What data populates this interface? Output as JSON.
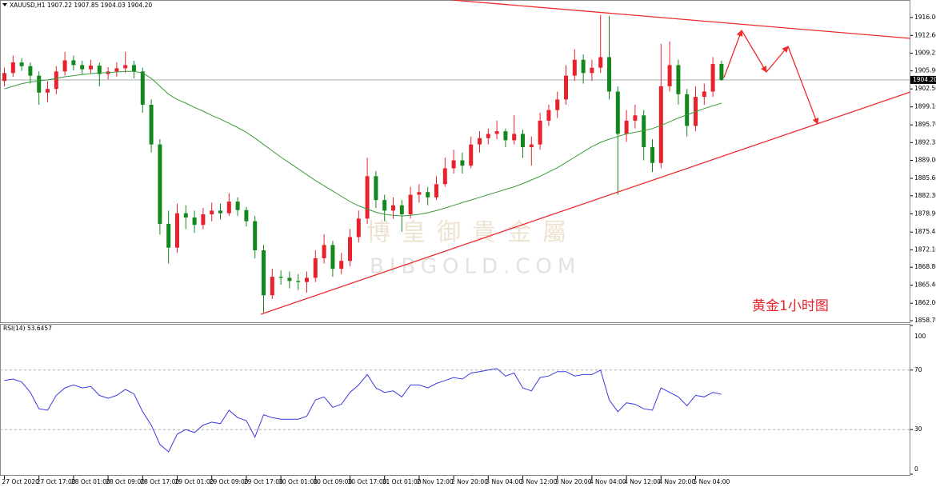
{
  "chart_data": {
    "type": "candlestick",
    "header": "XAUUSD,H1  1907.22 1907.85 1904.03 1904.20",
    "categories": [
      "27 Oct 2020",
      null,
      null,
      null,
      "27 Oct 17:00",
      null,
      null,
      null,
      "28 Oct 01:00",
      null,
      null,
      null,
      "28 Oct 09:00",
      null,
      null,
      null,
      "28 Oct 17:00",
      null,
      null,
      null,
      "29 Oct 01:00",
      null,
      null,
      null,
      "29 Oct 09:00",
      null,
      null,
      null,
      "29 Oct 17:00",
      null,
      null,
      null,
      "30 Oct 01:00",
      null,
      null,
      null,
      "30 Oct 09:00",
      null,
      null,
      null,
      "30 Oct 17:00",
      null,
      null,
      null,
      "31 Oct 01:00",
      null,
      null,
      null,
      "2 Nov 12:00",
      null,
      null,
      null,
      "2 Nov 20:00",
      null,
      null,
      null,
      "3 Nov 04:00",
      null,
      null,
      null,
      "3 Nov 12:00",
      null,
      null,
      null,
      "3 Nov 20:00",
      null,
      null,
      null,
      "4 Nov 04:00",
      null,
      null,
      null,
      "4 Nov 12:00",
      null,
      null,
      null,
      "4 Nov 20:00",
      null,
      null,
      null,
      "5 Nov 04:00",
      null,
      null,
      null
    ],
    "ohlc": [
      [
        1904.0,
        1906.5,
        1903.0,
        1905.5
      ],
      [
        1905.5,
        1908.8,
        1904.8,
        1907.5
      ],
      [
        1907.5,
        1908.3,
        1905.9,
        1906.8
      ],
      [
        1906.8,
        1907.5,
        1903.5,
        1905.0
      ],
      [
        1905.0,
        1905.8,
        1899.5,
        1901.8
      ],
      [
        1901.8,
        1904.0,
        1900.0,
        1902.5
      ],
      [
        1902.5,
        1906.8,
        1901.5,
        1905.8
      ],
      [
        1905.8,
        1909.5,
        1905.0,
        1907.9
      ],
      [
        1907.9,
        1908.8,
        1906.0,
        1907.0
      ],
      [
        1907.0,
        1907.8,
        1905.3,
        1906.2
      ],
      [
        1906.2,
        1908.0,
        1905.5,
        1906.9
      ],
      [
        1906.9,
        1907.5,
        1903.0,
        1905.3
      ],
      [
        1905.3,
        1906.6,
        1904.3,
        1905.8
      ],
      [
        1905.8,
        1907.5,
        1904.8,
        1906.4
      ],
      [
        1906.4,
        1909.5,
        1905.5,
        1907.0
      ],
      [
        1907.0,
        1907.8,
        1904.5,
        1905.8
      ],
      [
        1905.8,
        1906.5,
        1898.0,
        1899.5
      ],
      [
        1899.5,
        1900.5,
        1890.5,
        1892.0
      ],
      [
        1892.0,
        1893.0,
        1875.0,
        1877.0
      ],
      [
        1877.0,
        1879.5,
        1869.5,
        1872.5
      ],
      [
        1872.5,
        1880.8,
        1871.5,
        1879.0
      ],
      [
        1879.0,
        1880.5,
        1876.0,
        1878.2
      ],
      [
        1878.2,
        1879.5,
        1875.3,
        1876.8
      ],
      [
        1876.8,
        1880.0,
        1876.0,
        1878.8
      ],
      [
        1878.8,
        1881.0,
        1877.5,
        1879.5
      ],
      [
        1879.5,
        1880.8,
        1877.8,
        1879.0
      ],
      [
        1879.0,
        1882.8,
        1878.5,
        1881.2
      ],
      [
        1881.2,
        1882.0,
        1878.5,
        1879.6
      ],
      [
        1879.6,
        1880.2,
        1876.5,
        1877.5
      ],
      [
        1877.5,
        1878.5,
        1870.5,
        1872.0
      ],
      [
        1872.0,
        1873.0,
        1860.2,
        1863.5
      ],
      [
        1863.5,
        1868.5,
        1862.8,
        1867.0
      ],
      [
        1867.0,
        1868.2,
        1865.5,
        1866.8
      ],
      [
        1866.8,
        1868.0,
        1864.8,
        1866.2
      ],
      [
        1866.2,
        1867.5,
        1864.5,
        1866.0
      ],
      [
        1866.0,
        1868.0,
        1864.0,
        1866.8
      ],
      [
        1866.8,
        1872.0,
        1866.0,
        1870.5
      ],
      [
        1870.5,
        1875.0,
        1869.5,
        1873.0
      ],
      [
        1873.0,
        1873.8,
        1867.0,
        1868.5
      ],
      [
        1868.5,
        1871.5,
        1867.5,
        1870.0
      ],
      [
        1870.0,
        1876.0,
        1869.0,
        1874.5
      ],
      [
        1874.5,
        1879.5,
        1873.5,
        1878.0
      ],
      [
        1878.0,
        1889.5,
        1877.0,
        1886.0
      ],
      [
        1886.0,
        1887.0,
        1880.0,
        1881.5
      ],
      [
        1881.5,
        1882.5,
        1877.5,
        1879.5
      ],
      [
        1879.5,
        1882.0,
        1878.0,
        1880.5
      ],
      [
        1880.5,
        1881.5,
        1875.5,
        1878.8
      ],
      [
        1878.8,
        1884.0,
        1878.0,
        1882.5
      ],
      [
        1882.5,
        1884.5,
        1881.0,
        1883.0
      ],
      [
        1883.0,
        1884.0,
        1880.5,
        1882.0
      ],
      [
        1882.0,
        1886.0,
        1881.5,
        1884.5
      ],
      [
        1884.5,
        1889.5,
        1884.0,
        1887.5
      ],
      [
        1887.5,
        1891.0,
        1886.5,
        1889.0
      ],
      [
        1889.0,
        1890.5,
        1886.5,
        1888.0
      ],
      [
        1888.0,
        1893.5,
        1887.5,
        1892.0
      ],
      [
        1892.0,
        1894.5,
        1890.5,
        1893.2
      ],
      [
        1893.2,
        1895.0,
        1892.0,
        1894.0
      ],
      [
        1894.0,
        1896.5,
        1893.0,
        1894.5
      ],
      [
        1894.5,
        1895.0,
        1891.5,
        1892.8
      ],
      [
        1892.8,
        1897.5,
        1892.0,
        1894.0
      ],
      [
        1894.0,
        1894.8,
        1889.5,
        1891.5
      ],
      [
        1891.5,
        1893.5,
        1888.0,
        1892.0
      ],
      [
        1892.0,
        1898.0,
        1891.0,
        1896.5
      ],
      [
        1896.5,
        1899.5,
        1895.5,
        1898.5
      ],
      [
        1898.5,
        1902.0,
        1897.0,
        1900.5
      ],
      [
        1900.5,
        1907.0,
        1899.5,
        1905.0
      ],
      [
        1905.0,
        1910.0,
        1904.0,
        1908.0
      ],
      [
        1908.0,
        1909.0,
        1903.5,
        1905.5
      ],
      [
        1905.5,
        1908.0,
        1904.0,
        1906.5
      ],
      [
        1906.5,
        1916.5,
        1905.5,
        1908.5
      ],
      [
        1908.5,
        1916.3,
        1900.5,
        1902.0
      ],
      [
        1902.0,
        1903.0,
        1882.5,
        1894.0
      ],
      [
        1894.0,
        1898.5,
        1892.5,
        1896.5
      ],
      [
        1896.5,
        1899.5,
        1895.0,
        1897.5
      ],
      [
        1897.5,
        1898.5,
        1889.0,
        1891.5
      ],
      [
        1891.5,
        1893.0,
        1886.8,
        1888.5
      ],
      [
        1888.5,
        1911.0,
        1887.5,
        1903.0
      ],
      [
        1903.0,
        1911.5,
        1902.0,
        1907.0
      ],
      [
        1907.0,
        1908.0,
        1899.5,
        1901.5
      ],
      [
        1901.5,
        1902.5,
        1893.5,
        1895.5
      ],
      [
        1895.5,
        1903.0,
        1894.5,
        1901.0
      ],
      [
        1901.0,
        1903.5,
        1899.5,
        1902.0
      ],
      [
        1902.0,
        1908.5,
        1901.0,
        1907.2
      ],
      [
        1907.22,
        1907.85,
        1904.03,
        1904.2
      ]
    ],
    "up_color": "#e8212b",
    "down_color": "#13891d",
    "ma": {
      "color": "#3c9a3c",
      "values": [
        1902.5,
        1903,
        1903.5,
        1903.8,
        1904,
        1904.2,
        1904.5,
        1904.8,
        1905,
        1905.2,
        1905.4,
        1905.5,
        1905.6,
        1905.7,
        1905.8,
        1905.8,
        1905.5,
        1904.5,
        1903,
        1901.5,
        1900.5,
        1899.8,
        1899,
        1898.3,
        1897.5,
        1896.8,
        1896,
        1895.2,
        1894.3,
        1893.2,
        1892,
        1890.8,
        1889.6,
        1888.5,
        1887.4,
        1886.3,
        1885.2,
        1884.2,
        1883.2,
        1882.2,
        1881.2,
        1880.4,
        1879.8,
        1879.2,
        1878.8,
        1878.6,
        1878.5,
        1878.6,
        1878.8,
        1879.1,
        1879.5,
        1880,
        1880.5,
        1881,
        1881.5,
        1882,
        1882.5,
        1883,
        1883.5,
        1884,
        1884.6,
        1885.3,
        1886,
        1886.8,
        1887.6,
        1888.6,
        1889.6,
        1890.6,
        1891.6,
        1892.4,
        1893,
        1893.5,
        1894,
        1894.3,
        1894.6,
        1895,
        1895.6,
        1896.3,
        1897,
        1897.6,
        1898.2,
        1898.8,
        1899.3,
        1899.8
      ]
    },
    "ylim": [
      1858.4,
      1919.3
    ],
    "yticks": [
      {
        "value": 1916.0,
        "label": "1916.00"
      },
      {
        "value": 1912.6,
        "label": "1912.60"
      },
      {
        "value": 1909.25,
        "label": "1909.25"
      },
      {
        "value": 1905.9,
        "label": "1905.90"
      },
      {
        "value": 1902.5,
        "label": "1902.50"
      },
      {
        "value": 1899.1,
        "label": "1899.10"
      },
      {
        "value": 1895.7,
        "label": "1895.70"
      },
      {
        "value": 1892.35,
        "label": "1892.35"
      },
      {
        "value": 1889.0,
        "label": "1889.00"
      },
      {
        "value": 1885.6,
        "label": "1885.60"
      },
      {
        "value": 1882.3,
        "label": "1882.30"
      },
      {
        "value": 1878.9,
        "label": "1878.90"
      },
      {
        "value": 1875.45,
        "label": "1875.45"
      },
      {
        "value": 1872.1,
        "label": "1872.10"
      },
      {
        "value": 1868.8,
        "label": "1868.80"
      },
      {
        "value": 1865.4,
        "label": "1865.40"
      },
      {
        "value": 1862.0,
        "label": "1862.00"
      },
      {
        "value": 1858.7,
        "label": "1858.70"
      }
    ],
    "current_price": {
      "value": 1904.2,
      "label": "1904.20"
    },
    "annotation": "黄金1小时图",
    "watermark": "博皇御貴金屬",
    "watermark_sub": "BIBGOLD.COM",
    "rsi": {
      "header": "RSI(14) 53.6457",
      "color": "#3a3ae0",
      "ylim": [
        0,
        100
      ],
      "yticks": [
        0,
        30,
        70,
        100
      ],
      "values": [
        63,
        64,
        62,
        55,
        44,
        43,
        53,
        58,
        60,
        58,
        59,
        53,
        51,
        53,
        57,
        54,
        42,
        33,
        20,
        15,
        27,
        30,
        28,
        33,
        35,
        34,
        43,
        38,
        36,
        25,
        40,
        38,
        37,
        37,
        37,
        39,
        50,
        52,
        45,
        47,
        55,
        60,
        67,
        58,
        55,
        56,
        52,
        60,
        60,
        58,
        61,
        63,
        65,
        64,
        68,
        69,
        70,
        71,
        66,
        68,
        58,
        56,
        65,
        66,
        69,
        69,
        66,
        67,
        67,
        70,
        50,
        42,
        48,
        47,
        44,
        43,
        58,
        55,
        52,
        46,
        53,
        52,
        55,
        53.6457
      ]
    }
  }
}
